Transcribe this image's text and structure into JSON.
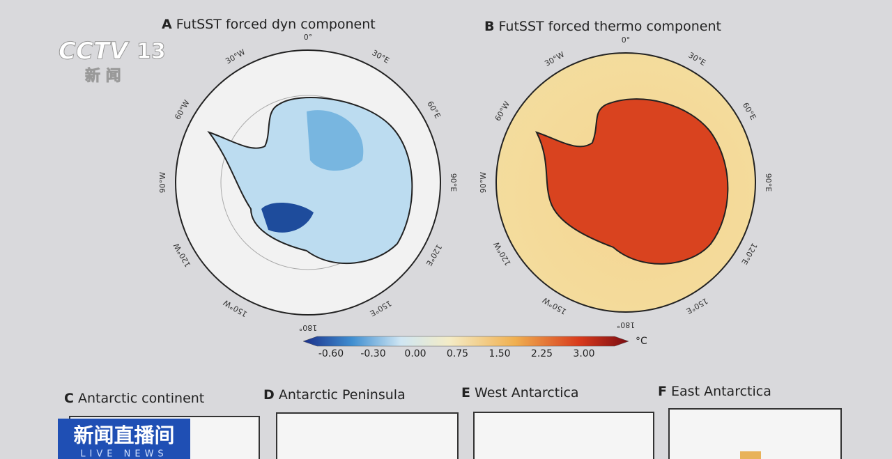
{
  "logo": {
    "channel": "CCTV",
    "number": "13",
    "subtitle": "新 闻"
  },
  "panels": [
    {
      "letter": "A",
      "title": "FutSST forced dyn component",
      "longitudes": [
        "0°",
        "30°E",
        "60°E",
        "90°E",
        "120°E",
        "150°E",
        "180°",
        "150°W",
        "120°W",
        "90°W",
        "60°W",
        "30°W"
      ]
    },
    {
      "letter": "B",
      "title": "FutSST forced thermo component",
      "longitudes": [
        "0°",
        "30°E",
        "60°E",
        "90°E",
        "120°E",
        "150°E",
        "180°",
        "150°W",
        "120°W",
        "90°W",
        "60°W",
        "30°W"
      ]
    }
  ],
  "colorbar": {
    "labels": [
      "-0.60",
      "-0.30",
      "0.00",
      "0.75",
      "1.50",
      "2.25",
      "3.00"
    ],
    "unit": "°C"
  },
  "bottom_panels": [
    {
      "letter": "C",
      "title": "Antarctic continent"
    },
    {
      "letter": "D",
      "title": "Antarctic Peninsula"
    },
    {
      "letter": "E",
      "title": "West Antarctica"
    },
    {
      "letter": "F",
      "title": "East Antarctica"
    }
  ],
  "banner": {
    "title": "新闻直播间",
    "subtitle": "LIVE NEWS"
  }
}
